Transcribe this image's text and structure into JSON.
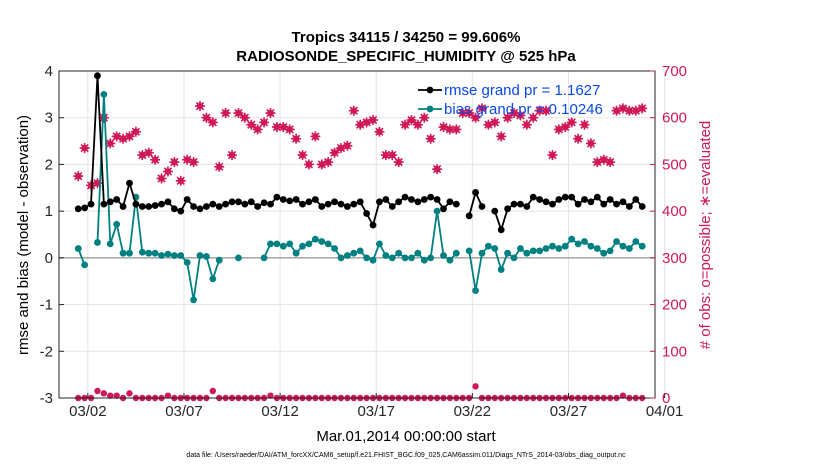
{
  "chart_data": {
    "type": "line",
    "title_line1": "Tropics 34115 / 34250 = 99.606%",
    "title_line2": "RADIOSONDE_SPECIFIC_HUMIDITY @ 525 hPa",
    "xlabel": "Mar.01,2014 00:00:00 start",
    "ylabel_left": "rmse and bias (model - observation)",
    "ylabel_right": "# of obs: o=possible; ∗=evaluated",
    "footnote": "data file: /Users/raeder/DAI/ATM_forcXX/CAM6_setup/f.e21.FHIST_BGC.f09_025.CAM6assim.011/Diags_NTrS_2014-03/obs_diag_output.nc",
    "xlim": [
      0.5,
      31.5
    ],
    "ylim_left": [
      -3,
      4
    ],
    "ylim_right": [
      0,
      700
    ],
    "x_tick_values": [
      2,
      7,
      12,
      17,
      22,
      27,
      32
    ],
    "x_tick_labels": [
      "03/02",
      "03/07",
      "03/12",
      "03/17",
      "03/22",
      "03/27",
      "04/01"
    ],
    "y_left_ticks": [
      "-3",
      "-2",
      "-1",
      "0",
      "1",
      "2",
      "3",
      "4"
    ],
    "y_right_ticks": [
      "0",
      "100",
      "200",
      "300",
      "400",
      "500",
      "600",
      "700"
    ],
    "colors": {
      "rmse": "#000000",
      "bias": "#008080",
      "obs": "#d01858",
      "legend_text": "#0a48e6",
      "zero_line": "#aaaaaa",
      "grid": "#e3e3e3"
    },
    "series": [
      {
        "name": "rmse grand pr = 1.1627",
        "axis": "left",
        "values": [
          1.05,
          1.07,
          1.15,
          3.9,
          1.15,
          1.2,
          1.25,
          1.1,
          1.6,
          1.15,
          1.1,
          1.1,
          1.12,
          1.15,
          1.2,
          1.05,
          1.0,
          1.25,
          1.1,
          1.05,
          1.1,
          1.15,
          1.1,
          1.15,
          1.2,
          1.2,
          1.15,
          1.2,
          1.1,
          1.18,
          1.15,
          1.3,
          1.25,
          1.22,
          1.25,
          1.15,
          1.2,
          1.25,
          1.1,
          1.15,
          1.2,
          1.15,
          1.1,
          1.15,
          1.2,
          0.95,
          0.7,
          1.2,
          1.25,
          1.1,
          1.2,
          1.3,
          1.25,
          1.2,
          1.25,
          1.3,
          1.25,
          1.05,
          1.2,
          1.15,
          null,
          0.9,
          1.4,
          1.1,
          null,
          1.0,
          0.6,
          1.05,
          1.15,
          1.15,
          1.1,
          1.3,
          1.25,
          1.2,
          1.15,
          1.25,
          1.3,
          1.3,
          1.15,
          1.25,
          1.2,
          1.3,
          1.15,
          1.25,
          1.15,
          1.2,
          1.1,
          1.25,
          1.1
        ]
      },
      {
        "name": "bias grand pr = 0.10246",
        "axis": "left",
        "values": [
          0.2,
          -0.15,
          null,
          0.33,
          3.5,
          0.3,
          0.72,
          0.1,
          0.1,
          1.3,
          0.12,
          0.1,
          0.1,
          0.05,
          0.08,
          0.05,
          0.05,
          -0.1,
          -0.9,
          0.05,
          0.03,
          -0.45,
          -0.05,
          null,
          null,
          0.0,
          null,
          null,
          null,
          0.0,
          0.3,
          0.3,
          0.25,
          0.3,
          0.1,
          0.25,
          0.3,
          0.4,
          0.35,
          0.3,
          0.2,
          0.0,
          0.05,
          0.1,
          0.15,
          0.0,
          -0.05,
          0.3,
          0.05,
          0.0,
          0.1,
          0.0,
          0.0,
          0.1,
          -0.05,
          0.0,
          1.0,
          0.05,
          -0.05,
          0.1,
          null,
          0.15,
          -0.7,
          0.1,
          0.25,
          0.2,
          -0.25,
          0.1,
          0.0,
          0.2,
          0.1,
          0.15,
          0.15,
          0.2,
          0.25,
          0.2,
          0.25,
          0.4,
          0.3,
          0.35,
          0.25,
          0.2,
          0.1,
          0.15,
          0.35,
          0.25,
          0.2,
          0.35,
          0.25
        ]
      },
      {
        "name": "obs evaluated",
        "axis": "right",
        "values": [
          475,
          535,
          455,
          460,
          600,
          545,
          560,
          555,
          560,
          570,
          520,
          525,
          510,
          470,
          485,
          505,
          465,
          510,
          505,
          625,
          600,
          590,
          495,
          610,
          520,
          610,
          600,
          585,
          575,
          590,
          610,
          580,
          580,
          575,
          555,
          520,
          500,
          560,
          500,
          505,
          525,
          535,
          540,
          615,
          585,
          590,
          595,
          570,
          520,
          520,
          505,
          585,
          595,
          585,
          600,
          555,
          490,
          580,
          575,
          575,
          610,
          610,
          600,
          620,
          585,
          590,
          560,
          600,
          610,
          605,
          585,
          600,
          615,
          615,
          520,
          575,
          580,
          590,
          555,
          585,
          545,
          505,
          510,
          505,
          615,
          620,
          615,
          615,
          620
        ]
      },
      {
        "name": "obs possible",
        "axis": "right",
        "values": [
          0,
          0,
          0,
          15,
          10,
          5,
          5,
          0,
          10,
          0,
          0,
          0,
          0,
          0,
          5,
          0,
          0,
          0,
          0,
          0,
          0,
          15,
          0,
          0,
          0,
          0,
          0,
          0,
          0,
          0,
          5,
          0,
          0,
          0,
          0,
          0,
          0,
          0,
          0,
          0,
          0,
          0,
          0,
          0,
          0,
          0,
          0,
          0,
          0,
          0,
          0,
          0,
          0,
          0,
          0,
          0,
          0,
          0,
          0,
          0,
          0,
          0,
          25,
          0,
          0,
          0,
          0,
          0,
          0,
          0,
          0,
          0,
          0,
          0,
          0,
          0,
          0,
          0,
          0,
          0,
          0,
          0,
          0,
          0,
          0,
          5,
          0,
          0,
          0
        ]
      }
    ]
  }
}
